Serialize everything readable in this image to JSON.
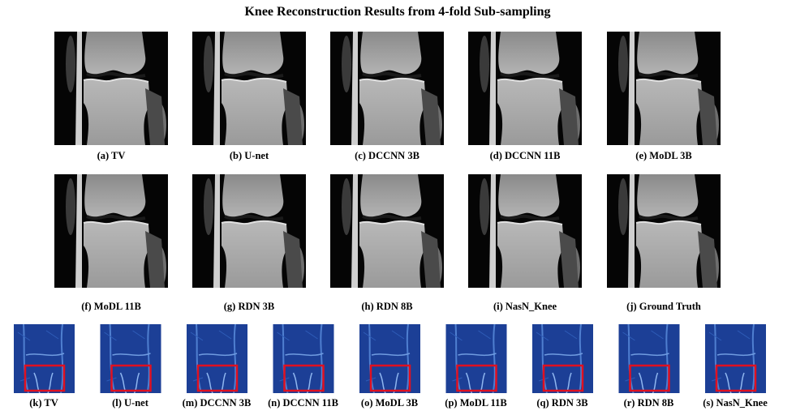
{
  "title": "Knee Reconstruction Results from 4-fold Sub-sampling",
  "reconstructions": [
    {
      "label": "(a) TV"
    },
    {
      "label": "(b) U-net"
    },
    {
      "label": "(c) DCCNN 3B"
    },
    {
      "label": "(d) DCCNN 11B"
    },
    {
      "label": "(e) MoDL 3B"
    },
    {
      "label": "(f) MoDL 11B"
    },
    {
      "label": "(g) RDN 3B"
    },
    {
      "label": "(h) RDN 8B"
    },
    {
      "label": "(i) NasN_Knee"
    },
    {
      "label": "(j) Ground Truth"
    }
  ],
  "error_maps": [
    {
      "label": "(k) TV"
    },
    {
      "label": "(l) U-net"
    },
    {
      "label": "(m) DCCNN 3B"
    },
    {
      "label": "(n) DCCNN 11B"
    },
    {
      "label": "(o) MoDL 3B"
    },
    {
      "label": "(p) MoDL 11B"
    },
    {
      "label": "(q) RDN 3B"
    },
    {
      "label": "(r) RDN 8B"
    },
    {
      "label": "(s) NasN_Knee"
    }
  ]
}
